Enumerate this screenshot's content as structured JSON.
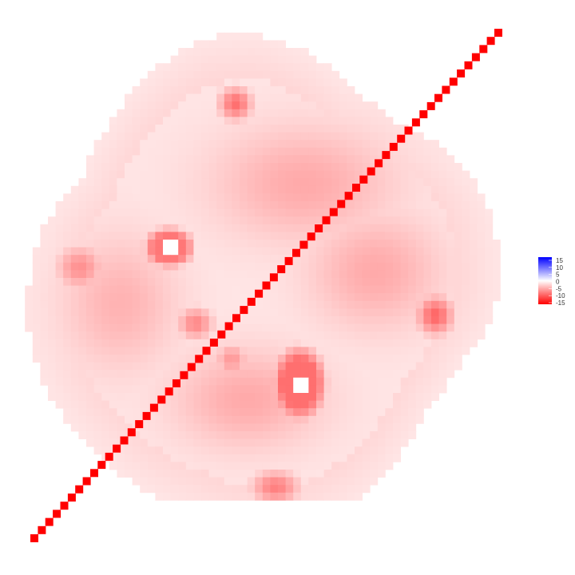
{
  "chart_data": {
    "type": "heatmap",
    "title": "",
    "xlabel": "",
    "ylabel": "",
    "grid": false,
    "legend_position": "right",
    "color_scale": {
      "min": -15,
      "max": 15,
      "low_color": "#ff0000",
      "mid_color": "#ffffff",
      "high_color": "#0000ff",
      "breaks": [
        "15",
        "10",
        "5",
        "0",
        "-5",
        "-10",
        "-15"
      ]
    },
    "diagonal_line": {
      "color": "#ff0000",
      "value": -15
    },
    "regions": {
      "background_value": -1.5,
      "light_zones": [
        {
          "name": "outer-ring",
          "value": -2.5
        },
        {
          "name": "center-ring",
          "value": -1.5
        }
      ],
      "medium_zones": [
        {
          "name": "upper-body",
          "value": -5
        },
        {
          "name": "right-body",
          "value": -5
        },
        {
          "name": "lower-body",
          "value": -5
        },
        {
          "name": "left-body",
          "value": -4.5
        }
      ],
      "hotspots": [
        {
          "name": "top",
          "value": -8.5
        },
        {
          "name": "right",
          "value": -9
        },
        {
          "name": "bottom",
          "value": -7.5
        },
        {
          "name": "left",
          "value": -6.5
        },
        {
          "name": "center",
          "value": -7
        },
        {
          "name": "center-2",
          "value": -6
        }
      ],
      "rings": [
        {
          "name": "upper-left-ring",
          "value": -8,
          "hole_value": 0
        },
        {
          "name": "lower-right-ring",
          "value": -8.5,
          "hole_value": 0
        }
      ]
    }
  }
}
